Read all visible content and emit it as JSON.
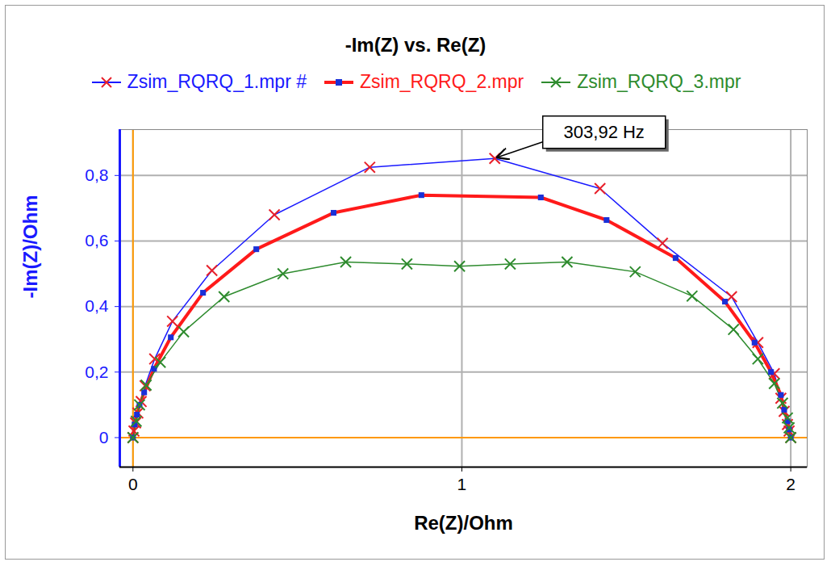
{
  "chart_data": {
    "type": "line",
    "title": "-Im(Z) vs. Re(Z)",
    "x_label": "Re(Z)/Ohm",
    "y_label": "-Im(Z)/Ohm",
    "xlim": [
      -0.04,
      2.05
    ],
    "ylim": [
      -0.09,
      0.94
    ],
    "xticks": [
      0,
      1,
      2
    ],
    "yticks": [
      0,
      {
        "value": 0.2,
        "label": "0,2"
      },
      {
        "value": 0.4,
        "label": "0,4"
      },
      {
        "value": 0.6,
        "label": "0,6"
      },
      {
        "value": 0.8,
        "label": "0,8"
      }
    ],
    "grid": true,
    "legend": "top",
    "series": [
      {
        "name": "Zsim_RQRQ_1.mpr #",
        "color": "#1a1aff",
        "marker": "x",
        "x": [
          0,
          0.003,
          0.008,
          0.015,
          0.025,
          0.037,
          0.066,
          0.12,
          0.24,
          0.43,
          0.72,
          1.1,
          1.42,
          1.61,
          1.82,
          1.9,
          1.95,
          1.97,
          1.98,
          1.99,
          1.995,
          2.0
        ],
        "values": [
          0,
          0.02,
          0.045,
          0.075,
          0.11,
          0.158,
          0.24,
          0.355,
          0.51,
          0.68,
          0.825,
          0.852,
          0.76,
          0.593,
          0.43,
          0.29,
          0.195,
          0.12,
          0.08,
          0.04,
          0.02,
          0
        ]
      },
      {
        "name": "Zsim_RQRQ_2.mpr",
        "color": "#ff1a1a",
        "marker": "square",
        "x": [
          0,
          0.005,
          0.012,
          0.02,
          0.034,
          0.064,
          0.115,
          0.213,
          0.375,
          0.61,
          0.877,
          1.24,
          1.44,
          1.65,
          1.8,
          1.89,
          1.94,
          1.97,
          1.98,
          1.99,
          1.995,
          2.0
        ],
        "values": [
          0,
          0.04,
          0.07,
          0.1,
          0.138,
          0.21,
          0.306,
          0.442,
          0.575,
          0.686,
          0.74,
          0.733,
          0.664,
          0.548,
          0.415,
          0.29,
          0.2,
          0.13,
          0.085,
          0.05,
          0.025,
          0
        ]
      },
      {
        "name": "Zsim_RQRQ_3.mpr",
        "color": "#2e8b2e",
        "marker": "x",
        "x": [
          0,
          0.01,
          0.02,
          0.04,
          0.083,
          0.154,
          0.277,
          0.456,
          0.647,
          0.833,
          0.993,
          1.147,
          1.32,
          1.527,
          1.7,
          1.826,
          1.9,
          1.95,
          1.975,
          1.99,
          1.995,
          2.0
        ],
        "values": [
          0,
          0.05,
          0.1,
          0.16,
          0.23,
          0.323,
          0.43,
          0.5,
          0.536,
          0.53,
          0.523,
          0.53,
          0.536,
          0.506,
          0.432,
          0.33,
          0.24,
          0.165,
          0.105,
          0.06,
          0.03,
          0
        ]
      }
    ],
    "annotations": [
      {
        "text": "303,92 Hz",
        "x": 1.1,
        "y": 0.852
      }
    ]
  }
}
